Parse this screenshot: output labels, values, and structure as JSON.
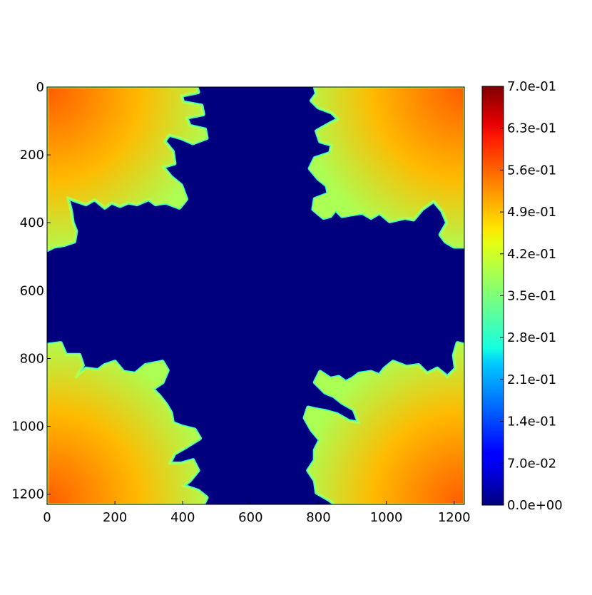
{
  "chart_data": {
    "type": "heatmap",
    "title": "",
    "xlabel": "",
    "ylabel": "",
    "xlim": [
      0,
      1230
    ],
    "ylim": [
      1230,
      0
    ],
    "grid": false,
    "xticks": [
      0,
      200,
      400,
      600,
      800,
      1000,
      1200
    ],
    "yticks": [
      0,
      200,
      400,
      600,
      800,
      1000,
      1200
    ],
    "xtick_labels": [
      "0",
      "200",
      "400",
      "600",
      "800",
      "1000",
      "1200"
    ],
    "ytick_labels": [
      "0",
      "200",
      "400",
      "600",
      "800",
      "1000",
      "1200"
    ],
    "colormap": "jet",
    "colorbar": {
      "vmin": 0.0,
      "vmax": 0.7,
      "placement": "right",
      "ticks": [
        0.0,
        0.07,
        0.14,
        0.21,
        0.28,
        0.35,
        0.42,
        0.49,
        0.56,
        0.63,
        0.7
      ],
      "tick_labels": [
        "0.0e+00",
        "7.0e-02",
        "1.4e-01",
        "2.1e-01",
        "2.8e-01",
        "3.5e-01",
        "4.2e-01",
        "4.9e-01",
        "5.6e-01",
        "6.3e-01",
        "7.0e-01"
      ]
    },
    "regions": [
      {
        "name": "top-left",
        "corner": [
          0,
          0
        ],
        "extent_x": [
          0,
          470
        ],
        "extent_y": [
          0,
          480
        ],
        "value_core": 0.55,
        "value_edge": 0.38
      },
      {
        "name": "top-right",
        "corner": [
          1230,
          0
        ],
        "extent_x": [
          770,
          1230
        ],
        "extent_y": [
          0,
          470
        ],
        "value_core": 0.55,
        "value_edge": 0.38
      },
      {
        "name": "bottom-left",
        "corner": [
          0,
          1230
        ],
        "extent_x": [
          0,
          470
        ],
        "extent_y": [
          760,
          1230
        ],
        "value_core": 0.55,
        "value_edge": 0.38
      },
      {
        "name": "bottom-right",
        "corner": [
          1230,
          1230
        ],
        "extent_x": [
          760,
          1230
        ],
        "extent_y": [
          760,
          1230
        ],
        "value_core": 0.55,
        "value_edge": 0.38
      }
    ],
    "background_value": 0.0
  }
}
